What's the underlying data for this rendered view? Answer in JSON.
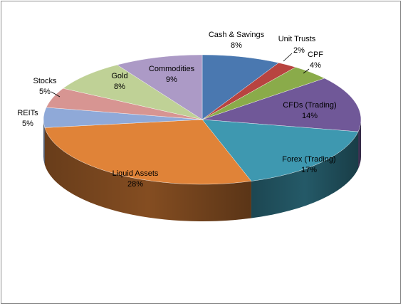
{
  "chart_data": {
    "type": "pie",
    "style": "3d-exploded",
    "legend": "none",
    "slices": [
      {
        "label": "Cash & Savings",
        "value": 8,
        "display": "8%",
        "color": "#4a78b0"
      },
      {
        "label": "Unit Trusts",
        "value": 2,
        "display": "2%",
        "color": "#b84440"
      },
      {
        "label": "CPF",
        "value": 4,
        "display": "4%",
        "color": "#8aab4a"
      },
      {
        "label": "CFDs (Trading)",
        "value": 14,
        "display": "14%",
        "color": "#705898"
      },
      {
        "label": "Forex (Trading)",
        "value": 17,
        "display": "17%",
        "color": "#3e98b0"
      },
      {
        "label": "Liquid Assets",
        "value": 28,
        "display": "28%",
        "color": "#e08338"
      },
      {
        "label": "REITs",
        "value": 5,
        "display": "5%",
        "color": "#8fa9d8"
      },
      {
        "label": "Stocks",
        "value": 5,
        "display": "5%",
        "color": "#d79592"
      },
      {
        "label": "Gold",
        "value": 8,
        "display": "8%",
        "color": "#bfd196"
      },
      {
        "label": "Commodities",
        "value": 9,
        "display": "9%",
        "color": "#ac9ac6"
      }
    ]
  }
}
